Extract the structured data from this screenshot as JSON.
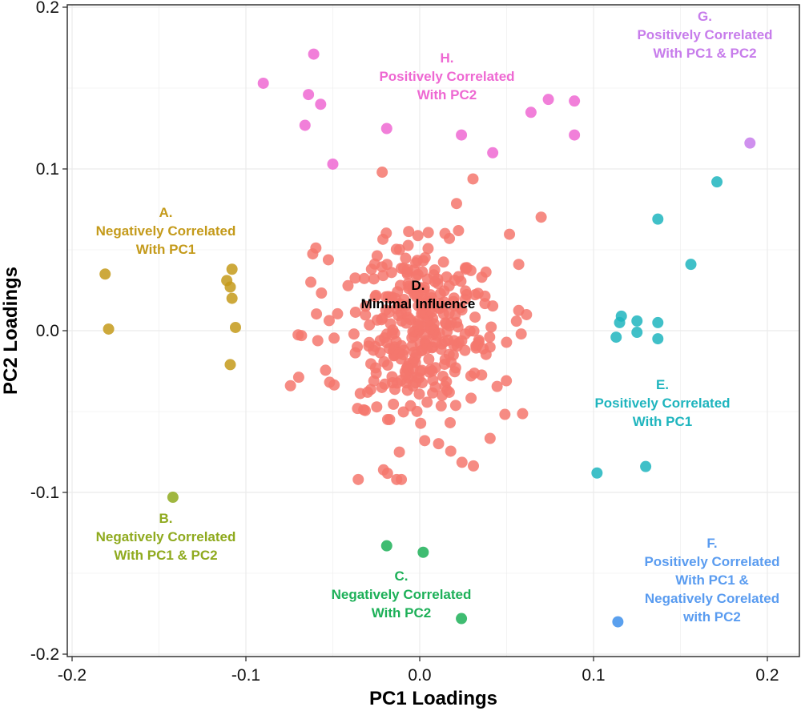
{
  "chart_data": {
    "type": "scatter",
    "title": "",
    "xlabel": "PC1 Loadings",
    "ylabel": "PC2 Loadings",
    "xlim": [
      -0.2,
      0.2
    ],
    "ylim": [
      -0.2,
      0.2
    ],
    "xticks": [
      -0.2,
      -0.1,
      0.0,
      0.1,
      0.2
    ],
    "yticks": [
      -0.2,
      -0.1,
      0.0,
      0.1,
      0.2
    ],
    "xtick_labels": [
      "-0.2",
      "-0.1",
      "0.0",
      "0.1",
      "0.2"
    ],
    "ytick_labels": [
      "-0.2",
      "-0.1",
      "0.0",
      "0.1",
      "0.2"
    ],
    "grid": true,
    "legend": "none",
    "series": [
      {
        "name": "A. Negatively Correlated With PC1",
        "color": "#C49A1A",
        "points": [
          [
            -0.181,
            0.035
          ],
          [
            -0.179,
            0.001
          ],
          [
            -0.111,
            0.031
          ],
          [
            -0.108,
            0.038
          ],
          [
            -0.109,
            0.027
          ],
          [
            -0.108,
            0.02
          ],
          [
            -0.106,
            0.002
          ],
          [
            -0.109,
            -0.021
          ]
        ]
      },
      {
        "name": "B. Negatively Correlated With PC1 & PC2",
        "color": "#8FAA1E",
        "points": [
          [
            -0.142,
            -0.103
          ]
        ]
      },
      {
        "name": "C. Negatively Correlated With PC2",
        "color": "#1DB058",
        "points": [
          [
            -0.019,
            -0.133
          ],
          [
            0.002,
            -0.137
          ],
          [
            0.024,
            -0.178
          ]
        ]
      },
      {
        "name": "D. Minimal Influence",
        "color": "#F4776D",
        "points": []
      },
      {
        "name": "E. Positively Correlated With PC1",
        "color": "#1FB5BE",
        "points": [
          [
            0.171,
            0.092
          ],
          [
            0.137,
            0.069
          ],
          [
            0.156,
            0.041
          ],
          [
            0.116,
            0.009
          ],
          [
            0.115,
            0.005
          ],
          [
            0.125,
            0.006
          ],
          [
            0.137,
            0.005
          ],
          [
            0.125,
            -0.001
          ],
          [
            0.113,
            -0.004
          ],
          [
            0.137,
            -0.005
          ],
          [
            0.102,
            -0.088
          ],
          [
            0.13,
            -0.084
          ]
        ]
      },
      {
        "name": "F. Positively Correlated With PC1 & Negatively Corelated with PC2",
        "color": "#3D8FEB",
        "points": [
          [
            0.114,
            -0.18
          ]
        ]
      },
      {
        "name": "G. Positively Correlated With PC1 & PC2",
        "color": "#C77CEB",
        "points": [
          [
            0.19,
            0.116
          ]
        ]
      },
      {
        "name": "H. Positively Correlated With PC2",
        "color": "#EE68D2",
        "points": [
          [
            -0.061,
            0.171
          ],
          [
            -0.09,
            0.153
          ],
          [
            -0.064,
            0.146
          ],
          [
            -0.057,
            0.14
          ],
          [
            -0.066,
            0.127
          ],
          [
            -0.019,
            0.125
          ],
          [
            0.024,
            0.121
          ],
          [
            0.064,
            0.135
          ],
          [
            0.074,
            0.143
          ],
          [
            0.089,
            0.142
          ],
          [
            0.089,
            0.121
          ],
          [
            0.042,
            0.11
          ],
          [
            -0.05,
            0.103
          ]
        ]
      }
    ],
    "annotations": [
      {
        "lines": [
          "A.",
          "Negatively Correlated",
          "With PC1"
        ],
        "color": "#C49A1A"
      },
      {
        "lines": [
          "B.",
          "Negatively Correlated",
          "With PC1 & PC2"
        ],
        "color": "#8FAA1E"
      },
      {
        "lines": [
          "C.",
          "Negatively Correlated",
          "With PC2"
        ],
        "color": "#1DB058"
      },
      {
        "lines": [
          "D.",
          "Minimal Influence"
        ],
        "color": "#000000"
      },
      {
        "lines": [
          "E.",
          "Positively Correlated",
          "With PC1"
        ],
        "color": "#1FB5BE"
      },
      {
        "lines": [
          "F.",
          "Positively Correlated",
          "With PC1 &",
          "Negatively Corelated",
          "with PC2"
        ],
        "color": "#5A9CF0"
      },
      {
        "lines": [
          "G.",
          "Positively Correlated",
          "With PC1 & PC2"
        ],
        "color": "#C77CEB"
      },
      {
        "lines": [
          "H.",
          "Positively Correlated",
          "With PC2"
        ],
        "color": "#EE68D2"
      }
    ]
  }
}
